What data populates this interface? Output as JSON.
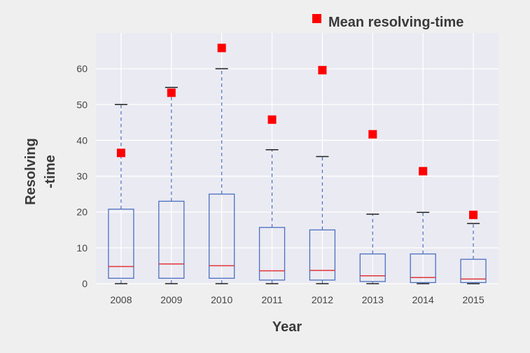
{
  "chart_data": {
    "type": "box",
    "categories": [
      "2008",
      "2009",
      "2010",
      "2011",
      "2012",
      "2013",
      "2014",
      "2015"
    ],
    "boxes": [
      {
        "year": "2008",
        "whisker_low": 0,
        "q1": 1.5,
        "median": 4.8,
        "q3": 20.8,
        "whisker_high": 50.0,
        "mean": 36.5
      },
      {
        "year": "2009",
        "whisker_low": 0,
        "q1": 1.5,
        "median": 5.5,
        "q3": 23.0,
        "whisker_high": 54.8,
        "mean": 53.3
      },
      {
        "year": "2010",
        "whisker_low": 0,
        "q1": 1.5,
        "median": 5.0,
        "q3": 25.0,
        "whisker_high": 60.0,
        "mean": 65.8
      },
      {
        "year": "2011",
        "whisker_low": 0,
        "q1": 1.0,
        "median": 3.6,
        "q3": 15.7,
        "whisker_high": 37.4,
        "mean": 45.8
      },
      {
        "year": "2012",
        "whisker_low": 0,
        "q1": 1.0,
        "median": 3.7,
        "q3": 15.0,
        "whisker_high": 35.5,
        "mean": 59.6
      },
      {
        "year": "2013",
        "whisker_low": 0,
        "q1": 0.6,
        "median": 2.2,
        "q3": 8.3,
        "whisker_high": 19.4,
        "mean": 41.7
      },
      {
        "year": "2014",
        "whisker_low": 0,
        "q1": 0.3,
        "median": 1.7,
        "q3": 8.3,
        "whisker_high": 19.9,
        "mean": 31.4
      },
      {
        "year": "2015",
        "whisker_low": 0,
        "q1": 0.3,
        "median": 1.3,
        "q3": 6.8,
        "whisker_high": 16.8,
        "mean": 19.2
      }
    ],
    "yticks": [
      0,
      10,
      20,
      30,
      40,
      50,
      60
    ],
    "ylim": [
      0,
      70
    ],
    "xlabel": "Year",
    "ylabel_line1": "Resolving",
    "ylabel_line2": "-time",
    "legend": {
      "label": "Mean resolving-time",
      "placement": "top-right"
    },
    "grid": true,
    "colors": {
      "background": "#efefef",
      "plot_area": "#eaeaf2",
      "grid": "#ffffff",
      "box": "#4a6fc0",
      "median": "#e0353a",
      "whisker": "#4a6fc0",
      "cap": "#222222",
      "mean": "#ff0000"
    }
  }
}
